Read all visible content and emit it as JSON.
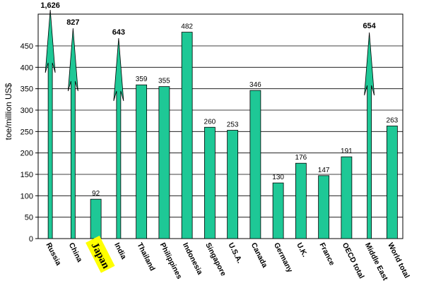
{
  "chart_data": {
    "type": "bar",
    "title": "",
    "xlabel": "",
    "ylabel": "toe/million US$",
    "ylim": [
      0,
      450
    ],
    "yticks": [
      0,
      50,
      100,
      150,
      200,
      250,
      300,
      350,
      400,
      450
    ],
    "grid": "horizontal",
    "legend": "none",
    "bar_color": "#1ec896",
    "highlight_category": "Japan",
    "highlight_color": "#ffff00",
    "categories": [
      "Russia",
      "China",
      "Japan",
      "India",
      "Thailand",
      "Philippines",
      "Indonesia",
      "Singapore",
      "U.S.A.",
      "Canada",
      "Germany",
      "U.K.",
      "France",
      "OECD total",
      "Middle East",
      "World total"
    ],
    "values": [
      1626,
      827,
      92,
      643,
      359,
      355,
      482,
      260,
      253,
      346,
      130,
      176,
      147,
      191,
      654,
      263
    ],
    "data_labels": [
      "1,626",
      "827",
      "92",
      "643",
      "359",
      "355",
      "482",
      "260",
      "253",
      "346",
      "130",
      "176",
      "147",
      "191",
      "654",
      "263"
    ],
    "off_scale_categories": [
      "Russia",
      "China",
      "India",
      "Middle East"
    ]
  }
}
